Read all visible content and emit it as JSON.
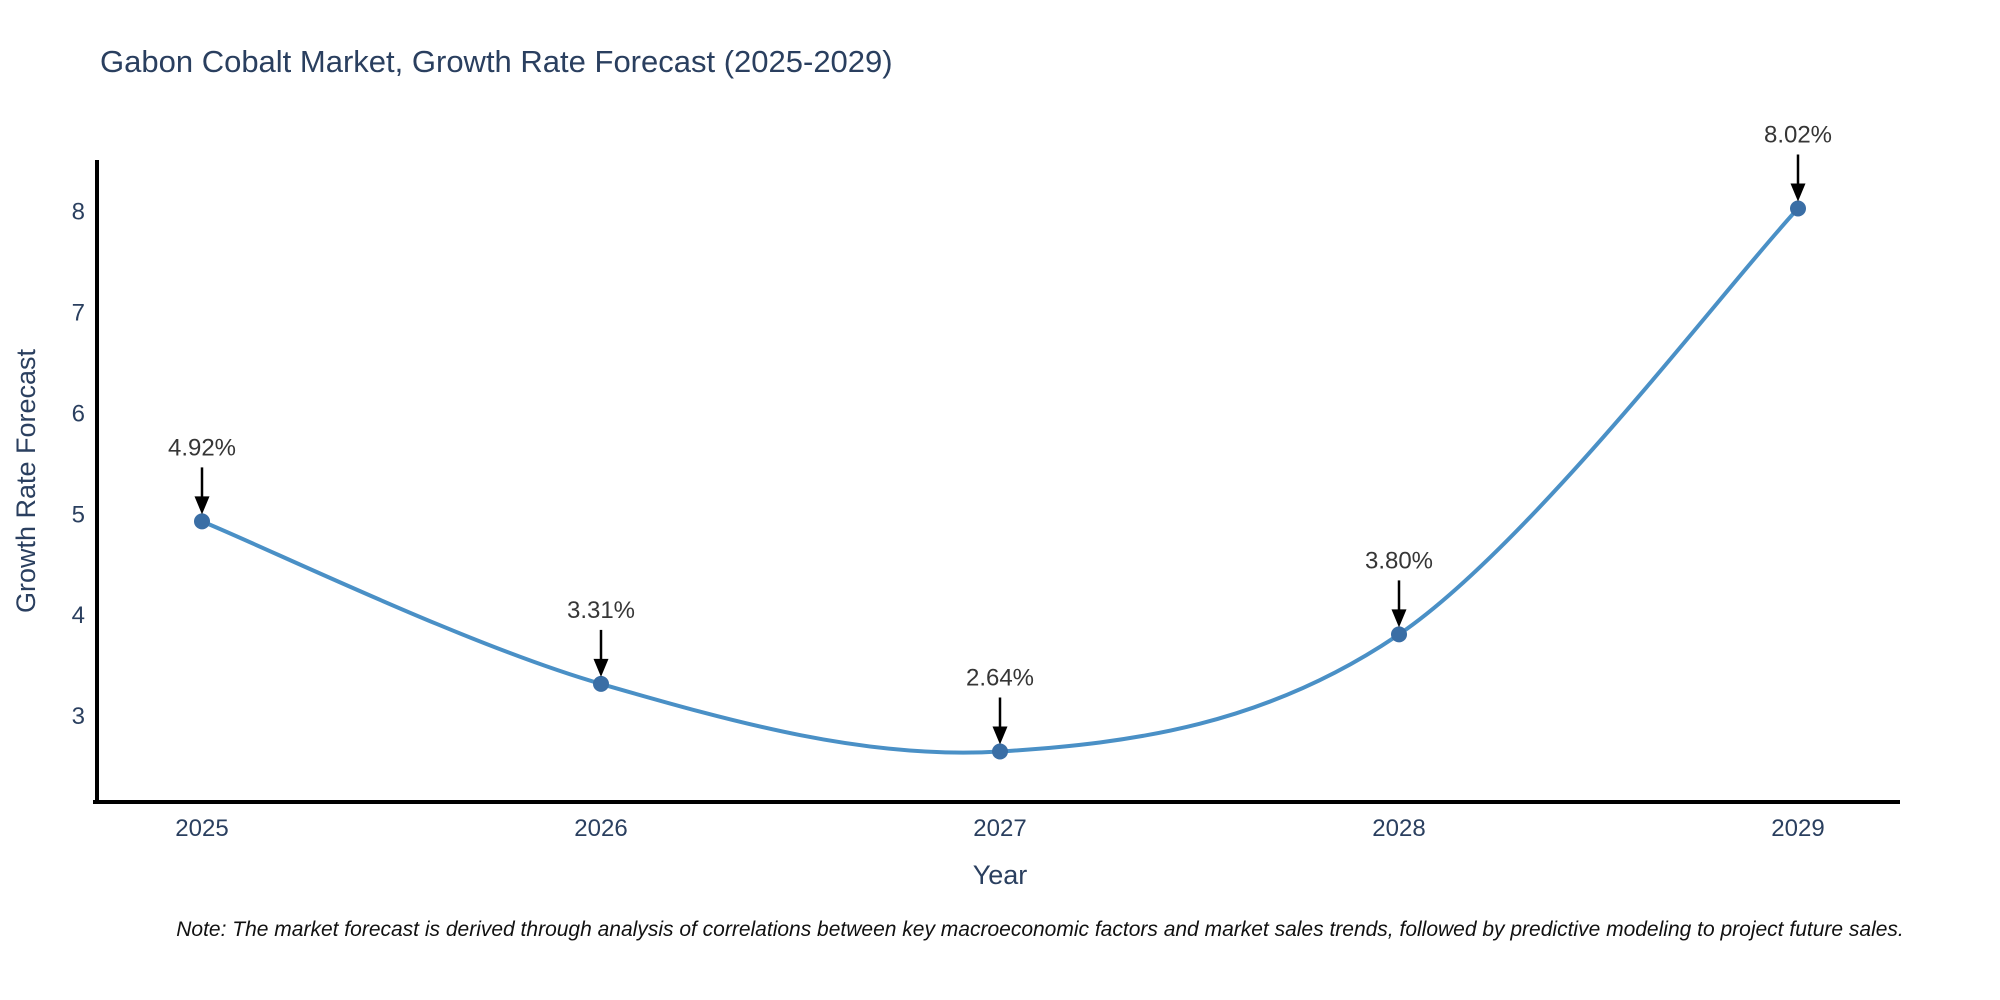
{
  "title": "Gabon Cobalt Market, Growth Rate Forecast (2025-2029)",
  "note": "Note: The market forecast is derived through analysis of correlations between key macroeconomic factors and market sales trends, followed by predictive modeling to project future sales.",
  "chart_data": {
    "type": "line",
    "line_shape": "spline",
    "title": "Gabon Cobalt Market, Growth Rate Forecast (2025-2029)",
    "xlabel": "Year",
    "ylabel": "Growth Rate Forecast",
    "x": [
      2025,
      2026,
      2027,
      2028,
      2029
    ],
    "y": [
      4.92,
      3.31,
      2.64,
      3.8,
      8.02
    ],
    "point_labels": [
      "4.92%",
      "3.31%",
      "2.64%",
      "3.80%",
      "8.02%"
    ],
    "xtick_labels": [
      "2025",
      "2026",
      "2027",
      "2028",
      "2029"
    ],
    "ytick_values": [
      3,
      4,
      5,
      6,
      7,
      8
    ],
    "ylim": [
      2.14,
      8.5
    ],
    "grid": false,
    "legend": "none",
    "colors": {
      "line": "#4A90C6",
      "marker": "#3A6EA5",
      "axis_line": "#000000",
      "tick_text": "#2a3f5f",
      "title_text": "#2a3f5f",
      "annotation_text": "#363636",
      "annotation_arrow": "#000000",
      "background": "#ffffff"
    }
  }
}
